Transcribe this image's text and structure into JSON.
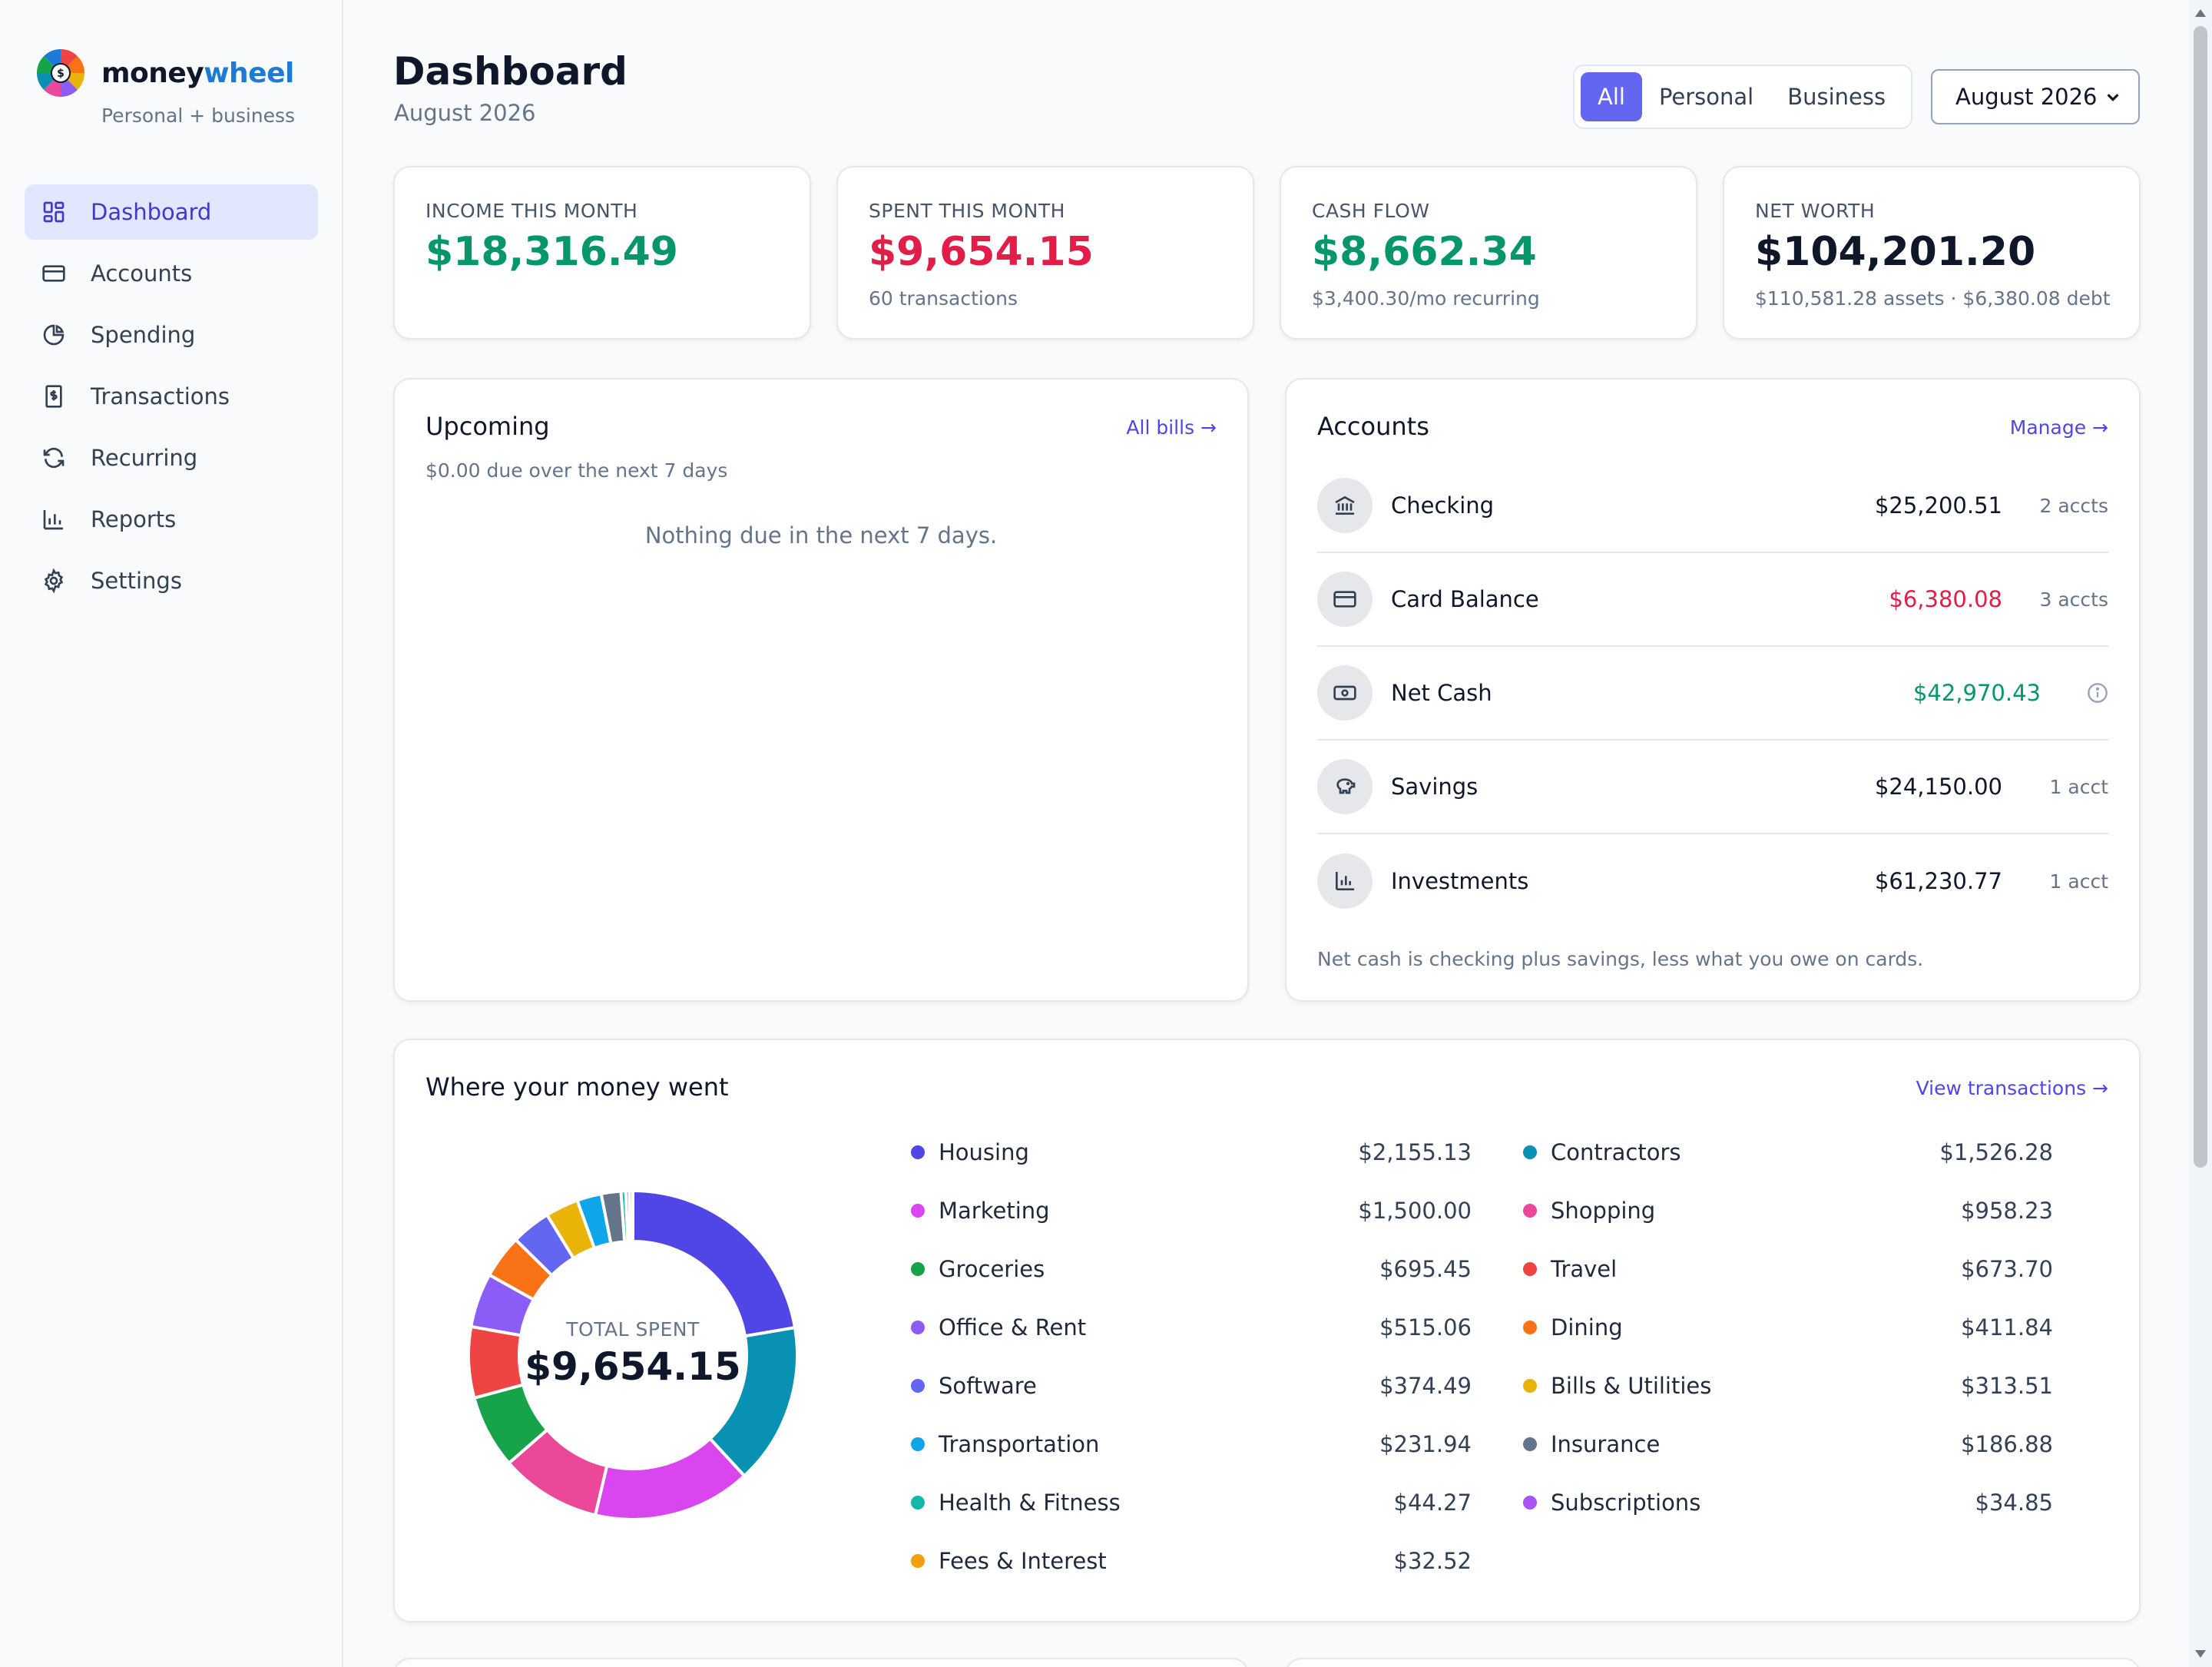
{
  "brand": {
    "name_part1": "money",
    "name_part2": "wheel",
    "tagline": "Personal + business"
  },
  "nav": [
    {
      "label": "Dashboard",
      "icon": "grid-icon",
      "active": true
    },
    {
      "label": "Accounts",
      "icon": "card-icon",
      "active": false
    },
    {
      "label": "Spending",
      "icon": "pie-icon",
      "active": false
    },
    {
      "label": "Transactions",
      "icon": "receipt-icon",
      "active": false
    },
    {
      "label": "Recurring",
      "icon": "refresh-icon",
      "active": false
    },
    {
      "label": "Reports",
      "icon": "bar-chart-icon",
      "active": false
    },
    {
      "label": "Settings",
      "icon": "gear-icon",
      "active": false
    }
  ],
  "header": {
    "title": "Dashboard",
    "subtitle": "August 2026",
    "scopes": [
      "All",
      "Personal",
      "Business"
    ],
    "active_scope": "All",
    "month_select": "August 2026"
  },
  "stats": [
    {
      "label": "INCOME THIS MONTH",
      "value": "$18,316.49",
      "sub": "",
      "color": "#059669"
    },
    {
      "label": "SPENT THIS MONTH",
      "value": "$9,654.15",
      "sub": "60 transactions",
      "color": "#e11d48"
    },
    {
      "label": "CASH FLOW",
      "value": "$8,662.34",
      "sub": "$3,400.30/mo recurring",
      "color": "#059669"
    },
    {
      "label": "NET WORTH",
      "value": "$104,201.20",
      "sub": "$110,581.28 assets · $6,380.08 debt",
      "color": "#0f172a"
    }
  ],
  "upcoming": {
    "title": "Upcoming",
    "link": "All bills →",
    "subtitle": "$0.00 due over the next 7 days",
    "empty": "Nothing due in the next 7 days."
  },
  "accounts": {
    "title": "Accounts",
    "link": "Manage →",
    "rows": [
      {
        "name": "Checking",
        "amount": "$25,200.51",
        "count": "2 accts",
        "icon": "bank-icon",
        "color": "#0f172a"
      },
      {
        "name": "Card Balance",
        "amount": "$6,380.08",
        "count": "3 accts",
        "icon": "credit-card-icon",
        "color": "#e11d48"
      },
      {
        "name": "Net Cash",
        "amount": "$42,970.43",
        "count": "",
        "icon": "cash-icon",
        "color": "#059669"
      },
      {
        "name": "Savings",
        "amount": "$24,150.00",
        "count": "1 acct",
        "icon": "piggy-bank-icon",
        "color": "#0f172a"
      },
      {
        "name": "Investments",
        "amount": "$61,230.77",
        "count": "1 acct",
        "icon": "bar-chart-icon",
        "color": "#0f172a"
      }
    ],
    "footnote": "Net cash is checking plus savings, less what you owe on cards."
  },
  "spending": {
    "title": "Where your money went",
    "link": "View transactions →",
    "total_label": "TOTAL SPENT",
    "total": "$9,654.15",
    "categories": [
      {
        "name": "Housing",
        "amount": "$2,155.13",
        "value": 2155.13,
        "color": "#4f46e5"
      },
      {
        "name": "Contractors",
        "amount": "$1,526.28",
        "value": 1526.28,
        "color": "#0891b2"
      },
      {
        "name": "Marketing",
        "amount": "$1,500.00",
        "value": 1500.0,
        "color": "#d946ef"
      },
      {
        "name": "Shopping",
        "amount": "$958.23",
        "value": 958.23,
        "color": "#ec4899"
      },
      {
        "name": "Groceries",
        "amount": "$695.45",
        "value": 695.45,
        "color": "#16a34a"
      },
      {
        "name": "Travel",
        "amount": "$673.70",
        "value": 673.7,
        "color": "#ef4444"
      },
      {
        "name": "Office & Rent",
        "amount": "$515.06",
        "value": 515.06,
        "color": "#8b5cf6"
      },
      {
        "name": "Dining",
        "amount": "$411.84",
        "value": 411.84,
        "color": "#f97316"
      },
      {
        "name": "Software",
        "amount": "$374.49",
        "value": 374.49,
        "color": "#6366f1"
      },
      {
        "name": "Bills & Utilities",
        "amount": "$313.51",
        "value": 313.51,
        "color": "#eab308"
      },
      {
        "name": "Transportation",
        "amount": "$231.94",
        "value": 231.94,
        "color": "#0ea5e9"
      },
      {
        "name": "Insurance",
        "amount": "$186.88",
        "value": 186.88,
        "color": "#64748b"
      },
      {
        "name": "Health & Fitness",
        "amount": "$44.27",
        "value": 44.27,
        "color": "#14b8a6"
      },
      {
        "name": "Subscriptions",
        "amount": "$34.85",
        "value": 34.85,
        "color": "#a855f7"
      },
      {
        "name": "Fees & Interest",
        "amount": "$32.52",
        "value": 32.52,
        "color": "#f59e0b"
      }
    ]
  }
}
